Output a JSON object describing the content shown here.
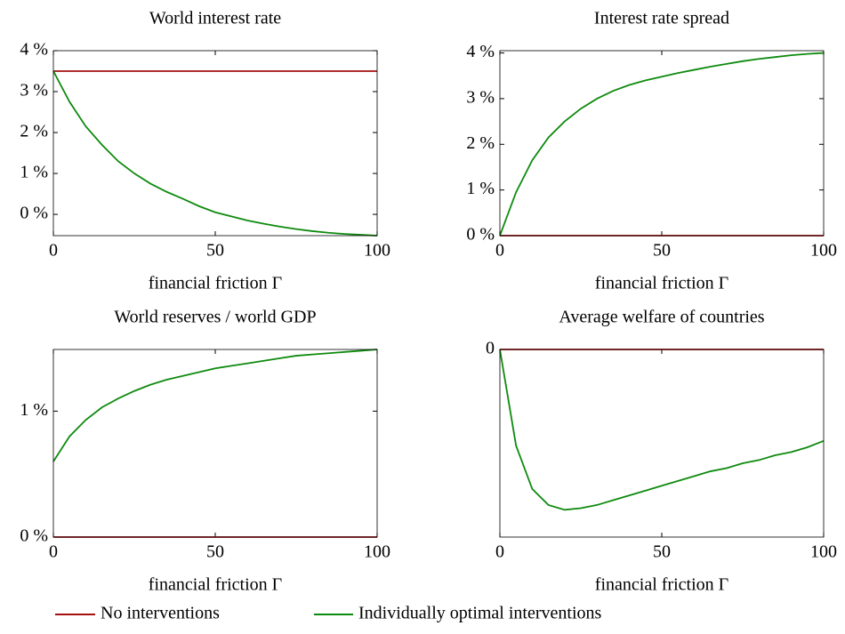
{
  "chart_data": [
    {
      "type": "line",
      "title": "World interest rate",
      "xlabel": "financial friction Γ",
      "x": [
        0,
        5,
        10,
        15,
        20,
        25,
        30,
        35,
        40,
        45,
        50,
        55,
        60,
        65,
        70,
        75,
        80,
        85,
        90,
        95,
        100
      ],
      "series": [
        {
          "color": "#a50f0f",
          "values": [
            3.5,
            3.5,
            3.5,
            3.5,
            3.5,
            3.5,
            3.5,
            3.5,
            3.5,
            3.5,
            3.5,
            3.5,
            3.5,
            3.5,
            3.5,
            3.5,
            3.5,
            3.5,
            3.5,
            3.5,
            3.5
          ]
        },
        {
          "color": "#0e8a0e",
          "values": [
            3.5,
            2.75,
            2.15,
            1.7,
            1.3,
            1.0,
            0.75,
            0.55,
            0.38,
            0.2,
            0.05,
            -0.05,
            -0.15,
            -0.23,
            -0.3,
            -0.36,
            -0.41,
            -0.45,
            -0.48,
            -0.5,
            -0.52
          ]
        }
      ],
      "xlim": [
        0,
        100
      ],
      "ylim": [
        -0.52,
        4
      ],
      "xticks": [
        0,
        50,
        100
      ],
      "yticks": [
        {
          "value": 0,
          "label": "0 %"
        },
        {
          "value": 1,
          "label": "1 %"
        },
        {
          "value": 2,
          "label": "2 %"
        },
        {
          "value": 3,
          "label": "3 %"
        },
        {
          "value": 4,
          "label": "4 %"
        }
      ]
    },
    {
      "type": "line",
      "title": "Interest rate spread",
      "xlabel": "financial friction Γ",
      "x": [
        0,
        5,
        10,
        15,
        20,
        25,
        30,
        35,
        40,
        45,
        50,
        55,
        60,
        65,
        70,
        75,
        80,
        85,
        90,
        95,
        100
      ],
      "series": [
        {
          "color": "#a50f0f",
          "values": [
            0,
            0,
            0,
            0,
            0,
            0,
            0,
            0,
            0,
            0,
            0,
            0,
            0,
            0,
            0,
            0,
            0,
            0,
            0,
            0,
            0
          ]
        },
        {
          "color": "#0e8a0e",
          "values": [
            0,
            0.95,
            1.65,
            2.15,
            2.5,
            2.78,
            3.0,
            3.17,
            3.3,
            3.4,
            3.48,
            3.56,
            3.63,
            3.7,
            3.76,
            3.82,
            3.87,
            3.91,
            3.95,
            3.98,
            4.0
          ]
        }
      ],
      "xlim": [
        0,
        100
      ],
      "ylim": [
        0,
        4.05
      ],
      "xticks": [
        0,
        50,
        100
      ],
      "yticks": [
        {
          "value": 0,
          "label": "0 %"
        },
        {
          "value": 1,
          "label": "1 %"
        },
        {
          "value": 2,
          "label": "2 %"
        },
        {
          "value": 3,
          "label": "3 %"
        },
        {
          "value": 4,
          "label": "4 %"
        }
      ]
    },
    {
      "type": "line",
      "title": "World reserves / world GDP",
      "xlabel": "financial friction Γ",
      "x": [
        0,
        5,
        10,
        15,
        20,
        25,
        30,
        35,
        40,
        45,
        50,
        55,
        60,
        65,
        70,
        75,
        80,
        85,
        90,
        95,
        100
      ],
      "series": [
        {
          "color": "#a50f0f",
          "values": [
            0,
            0,
            0,
            0,
            0,
            0,
            0,
            0,
            0,
            0,
            0,
            0,
            0,
            0,
            0,
            0,
            0,
            0,
            0,
            0,
            0
          ]
        },
        {
          "color": "#0e8a0e",
          "values": [
            0.6,
            0.8,
            0.93,
            1.03,
            1.1,
            1.16,
            1.21,
            1.25,
            1.28,
            1.31,
            1.34,
            1.36,
            1.38,
            1.4,
            1.42,
            1.44,
            1.45,
            1.46,
            1.47,
            1.48,
            1.49
          ]
        }
      ],
      "xlim": [
        0,
        100
      ],
      "ylim": [
        0,
        1.49
      ],
      "xticks": [
        0,
        50,
        100
      ],
      "yticks": [
        {
          "value": 0,
          "label": "0 %"
        },
        {
          "value": 1,
          "label": "1 %"
        }
      ]
    },
    {
      "type": "line",
      "title": "Average welfare of countries",
      "xlabel": "financial friction Γ",
      "x": [
        0,
        5,
        10,
        15,
        20,
        25,
        30,
        35,
        40,
        45,
        50,
        55,
        60,
        65,
        70,
        75,
        80,
        85,
        90,
        95,
        100
      ],
      "series": [
        {
          "color": "#a50f0f",
          "values": [
            0,
            0,
            0,
            0,
            0,
            0,
            0,
            0,
            0,
            0,
            0,
            0,
            0,
            0,
            0,
            0,
            0,
            0,
            0,
            0,
            0
          ]
        },
        {
          "color": "#0e8a0e",
          "values": [
            0,
            -0.6,
            -0.87,
            -0.97,
            -1.0,
            -0.99,
            -0.97,
            -0.94,
            -0.91,
            -0.88,
            -0.85,
            -0.82,
            -0.79,
            -0.76,
            -0.74,
            -0.71,
            -0.69,
            -0.66,
            -0.64,
            -0.61,
            -0.57
          ]
        }
      ],
      "xlim": [
        0,
        100
      ],
      "ylim": [
        -1.17,
        0
      ],
      "xticks": [
        0,
        50,
        100
      ],
      "yticks": [
        0
      ]
    }
  ],
  "legend": {
    "entries": [
      {
        "name": "No interventions",
        "color": "#a50f0f"
      },
      {
        "name": "Individually optimal interventions",
        "color": "#0e8a0e"
      }
    ]
  }
}
